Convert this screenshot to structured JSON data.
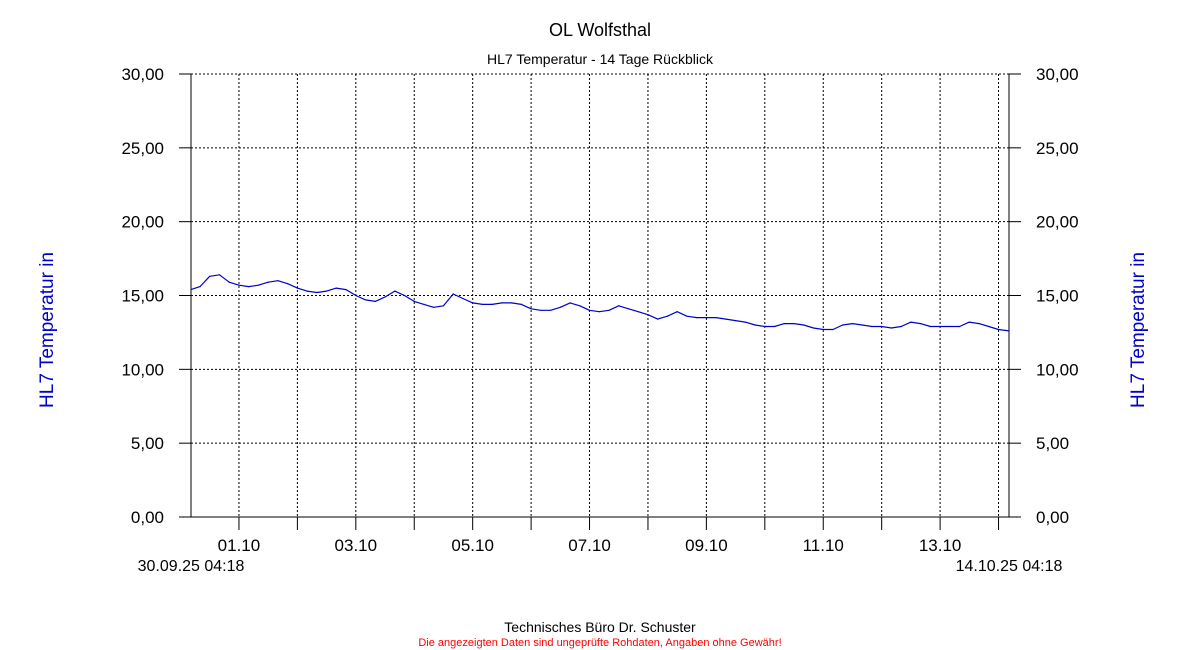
{
  "chart_data": {
    "type": "line",
    "title": "OL Wolfsthal",
    "subtitle": "HL7 Temperatur - 14 Tage Rückblick",
    "ylabel_left": "HL7 Temperatur in",
    "ylabel_right": "HL7 Temperatur in",
    "ylim": [
      0,
      30
    ],
    "yticks": [
      0,
      5,
      10,
      15,
      20,
      25,
      30
    ],
    "ytick_labels": [
      "0,00",
      "5,00",
      "10,00",
      "15,00",
      "20,00",
      "25,00",
      "30,00"
    ],
    "x_start": "2025-09-30T04:18",
    "x_end": "2025-10-14T04:18",
    "x_start_label": "30.09.25 04:18",
    "x_end_label": "14.10.25 04:18",
    "xticks": [
      "2025-10-01T00:00",
      "2025-10-02T00:00",
      "2025-10-03T00:00",
      "2025-10-04T00:00",
      "2025-10-05T00:00",
      "2025-10-06T00:00",
      "2025-10-07T00:00",
      "2025-10-08T00:00",
      "2025-10-09T00:00",
      "2025-10-10T00:00",
      "2025-10-11T00:00",
      "2025-10-12T00:00",
      "2025-10-13T00:00",
      "2025-10-14T00:00"
    ],
    "xtick_labels": [
      {
        "date": "2025-10-01T00:00",
        "label": "01.10"
      },
      {
        "date": "2025-10-03T00:00",
        "label": "03.10"
      },
      {
        "date": "2025-10-05T00:00",
        "label": "05.10"
      },
      {
        "date": "2025-10-07T00:00",
        "label": "07.10"
      },
      {
        "date": "2025-10-09T00:00",
        "label": "09.10"
      },
      {
        "date": "2025-10-11T00:00",
        "label": "11.10"
      },
      {
        "date": "2025-10-13T00:00",
        "label": "13.10"
      }
    ],
    "grid": true,
    "series": [
      {
        "color": "#0000cc",
        "points": [
          [
            "2025-09-30T04:18",
            15.4
          ],
          [
            "2025-09-30T08:00",
            15.6
          ],
          [
            "2025-09-30T12:00",
            16.3
          ],
          [
            "2025-09-30T16:00",
            16.4
          ],
          [
            "2025-09-30T20:00",
            15.9
          ],
          [
            "2025-10-01T00:00",
            15.7
          ],
          [
            "2025-10-01T04:00",
            15.6
          ],
          [
            "2025-10-01T08:00",
            15.7
          ],
          [
            "2025-10-01T12:00",
            15.9
          ],
          [
            "2025-10-01T16:00",
            16.0
          ],
          [
            "2025-10-01T20:00",
            15.8
          ],
          [
            "2025-10-02T00:00",
            15.5
          ],
          [
            "2025-10-02T04:00",
            15.3
          ],
          [
            "2025-10-02T08:00",
            15.2
          ],
          [
            "2025-10-02T12:00",
            15.3
          ],
          [
            "2025-10-02T16:00",
            15.5
          ],
          [
            "2025-10-02T20:00",
            15.4
          ],
          [
            "2025-10-03T00:00",
            15.0
          ],
          [
            "2025-10-03T04:00",
            14.7
          ],
          [
            "2025-10-03T08:00",
            14.6
          ],
          [
            "2025-10-03T12:00",
            14.9
          ],
          [
            "2025-10-03T16:00",
            15.3
          ],
          [
            "2025-10-03T20:00",
            15.0
          ],
          [
            "2025-10-04T00:00",
            14.6
          ],
          [
            "2025-10-04T04:00",
            14.4
          ],
          [
            "2025-10-04T08:00",
            14.2
          ],
          [
            "2025-10-04T12:00",
            14.3
          ],
          [
            "2025-10-04T16:00",
            15.1
          ],
          [
            "2025-10-04T20:00",
            14.8
          ],
          [
            "2025-10-05T00:00",
            14.5
          ],
          [
            "2025-10-05T04:00",
            14.4
          ],
          [
            "2025-10-05T08:00",
            14.4
          ],
          [
            "2025-10-05T12:00",
            14.5
          ],
          [
            "2025-10-05T16:00",
            14.5
          ],
          [
            "2025-10-05T20:00",
            14.4
          ],
          [
            "2025-10-06T00:00",
            14.1
          ],
          [
            "2025-10-06T04:00",
            14.0
          ],
          [
            "2025-10-06T08:00",
            14.0
          ],
          [
            "2025-10-06T12:00",
            14.2
          ],
          [
            "2025-10-06T16:00",
            14.5
          ],
          [
            "2025-10-06T20:00",
            14.3
          ],
          [
            "2025-10-07T00:00",
            14.0
          ],
          [
            "2025-10-07T04:00",
            13.9
          ],
          [
            "2025-10-07T08:00",
            14.0
          ],
          [
            "2025-10-07T12:00",
            14.3
          ],
          [
            "2025-10-07T16:00",
            14.1
          ],
          [
            "2025-10-07T20:00",
            13.9
          ],
          [
            "2025-10-08T00:00",
            13.7
          ],
          [
            "2025-10-08T04:00",
            13.4
          ],
          [
            "2025-10-08T08:00",
            13.6
          ],
          [
            "2025-10-08T12:00",
            13.9
          ],
          [
            "2025-10-08T16:00",
            13.6
          ],
          [
            "2025-10-08T20:00",
            13.5
          ],
          [
            "2025-10-09T00:00",
            13.5
          ],
          [
            "2025-10-09T04:00",
            13.5
          ],
          [
            "2025-10-09T08:00",
            13.4
          ],
          [
            "2025-10-09T12:00",
            13.3
          ],
          [
            "2025-10-09T16:00",
            13.2
          ],
          [
            "2025-10-09T20:00",
            13.0
          ],
          [
            "2025-10-10T00:00",
            12.9
          ],
          [
            "2025-10-10T04:00",
            12.9
          ],
          [
            "2025-10-10T08:00",
            13.1
          ],
          [
            "2025-10-10T12:00",
            13.1
          ],
          [
            "2025-10-10T16:00",
            13.0
          ],
          [
            "2025-10-10T20:00",
            12.8
          ],
          [
            "2025-10-11T00:00",
            12.7
          ],
          [
            "2025-10-11T04:00",
            12.7
          ],
          [
            "2025-10-11T08:00",
            13.0
          ],
          [
            "2025-10-11T12:00",
            13.1
          ],
          [
            "2025-10-11T16:00",
            13.0
          ],
          [
            "2025-10-11T20:00",
            12.9
          ],
          [
            "2025-10-12T00:00",
            12.9
          ],
          [
            "2025-10-12T04:00",
            12.8
          ],
          [
            "2025-10-12T08:00",
            12.9
          ],
          [
            "2025-10-12T12:00",
            13.2
          ],
          [
            "2025-10-12T16:00",
            13.1
          ],
          [
            "2025-10-12T20:00",
            12.9
          ],
          [
            "2025-10-13T00:00",
            12.9
          ],
          [
            "2025-10-13T04:00",
            12.9
          ],
          [
            "2025-10-13T08:00",
            12.9
          ],
          [
            "2025-10-13T12:00",
            13.2
          ],
          [
            "2025-10-13T16:00",
            13.1
          ],
          [
            "2025-10-13T20:00",
            12.9
          ],
          [
            "2025-10-14T00:00",
            12.7
          ],
          [
            "2025-10-14T04:18",
            12.6
          ]
        ]
      }
    ]
  },
  "footer": {
    "company": "Technisches Büro Dr. Schuster",
    "disclaimer": "Die angezeigten Daten sind ungeprüfte Rohdaten, Angaben ohne Gewähr!"
  },
  "colors": {
    "axis_label": "#0000cc",
    "disclaimer": "#ff0000",
    "grid": "#000000"
  }
}
